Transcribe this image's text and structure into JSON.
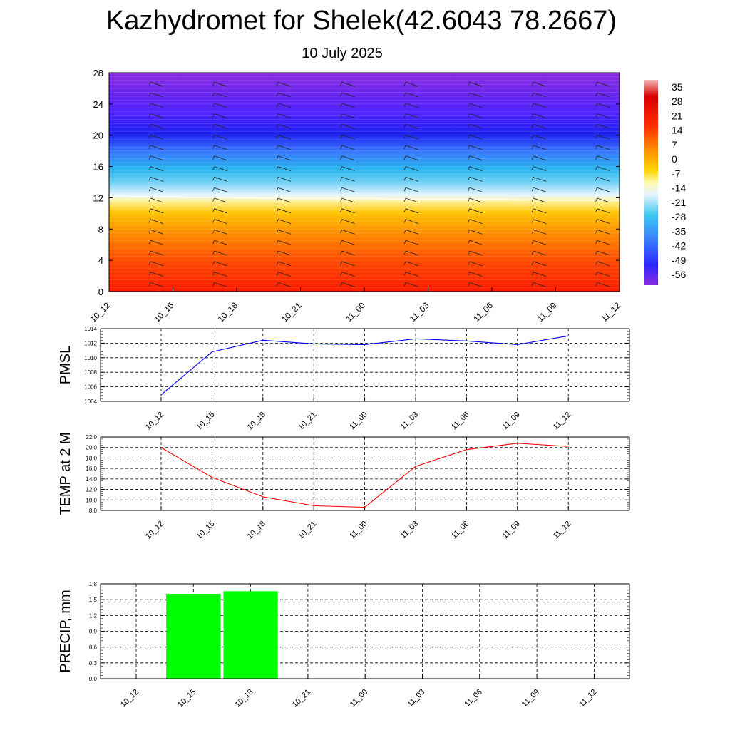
{
  "title": "Kazhydromet for Shelek(42.6043 78.2667)",
  "subtitle": "10 July 2025",
  "time_labels": [
    "10_12",
    "10_15",
    "10_18",
    "10_21",
    "11_00",
    "11_03",
    "11_06",
    "11_09",
    "11_12"
  ],
  "colors": {
    "pmsl_line": "#0000ff",
    "temp_line": "#ff0000",
    "precip_bar": "#00ff00",
    "colorbar": [
      "#8a2be2",
      "#2a2aff",
      "#3a7bff",
      "#3cc7f0",
      "#e6f3ff",
      "#fff9b0",
      "#ffd700",
      "#ff8c00",
      "#ff2a00",
      "#d60000",
      "#f2b8b8"
    ]
  },
  "chart_data": [
    {
      "type": "heatmap",
      "name": "cross-section",
      "title": "",
      "x_ticks": [
        "10_12",
        "10_15",
        "10_18",
        "10_21",
        "11_00",
        "11_03",
        "11_06",
        "11_09",
        "11_12"
      ],
      "y_ticks": [
        "0",
        "4",
        "8",
        "12",
        "16",
        "20",
        "24",
        "28"
      ],
      "ylim": [
        0,
        28
      ],
      "colorbar_labels": [
        "35",
        "28",
        "21",
        "14",
        "7",
        "0",
        "-7",
        "-14",
        "-21",
        "-28",
        "-35",
        "-42",
        "-49",
        "-56"
      ],
      "freezing_level_approx": [
        12.2,
        12.1,
        12.0,
        11.9,
        11.9,
        11.8,
        11.8,
        11.7,
        11.7
      ]
    },
    {
      "type": "line",
      "ylabel": "PMSL",
      "x": [
        "10_12",
        "10_15",
        "10_18",
        "10_21",
        "11_00",
        "11_03",
        "11_06",
        "11_09",
        "11_12"
      ],
      "values": [
        1004.9,
        1010.8,
        1012.4,
        1011.9,
        1011.8,
        1012.6,
        1012.3,
        1011.8,
        1013.0
      ],
      "ylim": [
        1004,
        1014
      ],
      "y_ticks": [
        "1014",
        "1012",
        "1010",
        "1008",
        "1006",
        "1004"
      ],
      "grid": true
    },
    {
      "type": "line",
      "ylabel": "TEMP at 2 M",
      "x": [
        "10_12",
        "10_15",
        "10_18",
        "10_21",
        "11_00",
        "11_03",
        "11_06",
        "11_09",
        "11_12"
      ],
      "values": [
        20.0,
        14.3,
        10.6,
        8.9,
        8.6,
        16.4,
        19.6,
        20.8,
        20.2
      ],
      "ylim": [
        8,
        22
      ],
      "y_ticks": [
        "22.0",
        "20.0",
        "18.0",
        "16.0",
        "14.0",
        "12.0",
        "10.0",
        "8.0"
      ],
      "grid": true
    },
    {
      "type": "bar",
      "ylabel": "PRECIP, mm",
      "categories": [
        "10_12",
        "10_15",
        "10_18",
        "10_21",
        "11_00",
        "11_03",
        "11_06",
        "11_09",
        "11_12"
      ],
      "values": [
        0,
        1.61,
        1.66,
        0,
        0,
        0,
        0,
        0,
        0
      ],
      "ylim": [
        0,
        1.8
      ],
      "y_ticks": [
        "1.8",
        "1.5",
        "1.2",
        "0.9",
        "0.6",
        "0.3",
        "0.0"
      ],
      "grid": true
    }
  ]
}
